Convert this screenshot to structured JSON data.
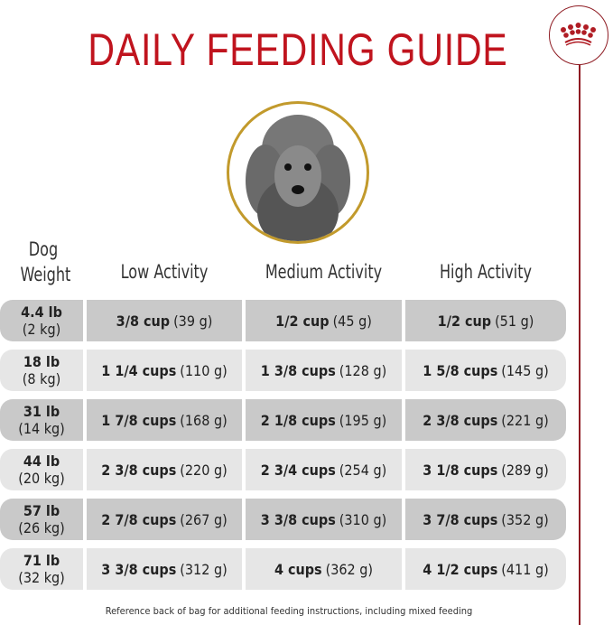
{
  "title": "DAILY FEEDING GUIDE",
  "colors": {
    "title": "#c0141e",
    "logo": "#8e1b22",
    "photo_ring": "#c29a2c",
    "row_dark": "#c9c9c9",
    "row_light": "#e6e6e6"
  },
  "logo_icon": "crown-icon",
  "headers": {
    "weight_line1": "Dog",
    "weight_line2": "Weight",
    "low": "Low Activity",
    "medium": "Medium Activity",
    "high": "High Activity"
  },
  "rows": [
    {
      "lb": "4.4 lb",
      "kg": "(2 kg)",
      "low": {
        "cups": "3/8 cup",
        "grams": "(39 g)"
      },
      "medium": {
        "cups": "1/2 cup",
        "grams": "(45 g)"
      },
      "high": {
        "cups": "1/2 cup",
        "grams": "(51 g)"
      }
    },
    {
      "lb": "18 lb",
      "kg": "(8 kg)",
      "low": {
        "cups": "1 1/4 cups",
        "grams": "(110 g)"
      },
      "medium": {
        "cups": "1 3/8 cups",
        "grams": "(128 g)"
      },
      "high": {
        "cups": "1 5/8 cups",
        "grams": "(145 g)"
      }
    },
    {
      "lb": "31 lb",
      "kg": "(14 kg)",
      "low": {
        "cups": "1 7/8 cups",
        "grams": "(168 g)"
      },
      "medium": {
        "cups": "2 1/8 cups",
        "grams": "(195 g)"
      },
      "high": {
        "cups": "2 3/8 cups",
        "grams": "(221 g)"
      }
    },
    {
      "lb": "44 lb",
      "kg": "(20 kg)",
      "low": {
        "cups": "2 3/8 cups",
        "grams": "(220 g)"
      },
      "medium": {
        "cups": "2 3/4 cups",
        "grams": "(254 g)"
      },
      "high": {
        "cups": "3 1/8 cups",
        "grams": "(289 g)"
      }
    },
    {
      "lb": "57 lb",
      "kg": "(26 kg)",
      "low": {
        "cups": "2 7/8 cups",
        "grams": "(267 g)"
      },
      "medium": {
        "cups": "3 3/8 cups",
        "grams": "(310 g)"
      },
      "high": {
        "cups": "3 7/8 cups",
        "grams": "(352 g)"
      }
    },
    {
      "lb": "71 lb",
      "kg": "(32 kg)",
      "low": {
        "cups": "3 3/8 cups",
        "grams": "(312 g)"
      },
      "medium": {
        "cups": "4 cups",
        "grams": "(362 g)"
      },
      "high": {
        "cups": "4 1/2 cups",
        "grams": "(411 g)"
      }
    }
  ],
  "footer": "Reference back of bag for additional feeding instructions, including mixed feeding"
}
